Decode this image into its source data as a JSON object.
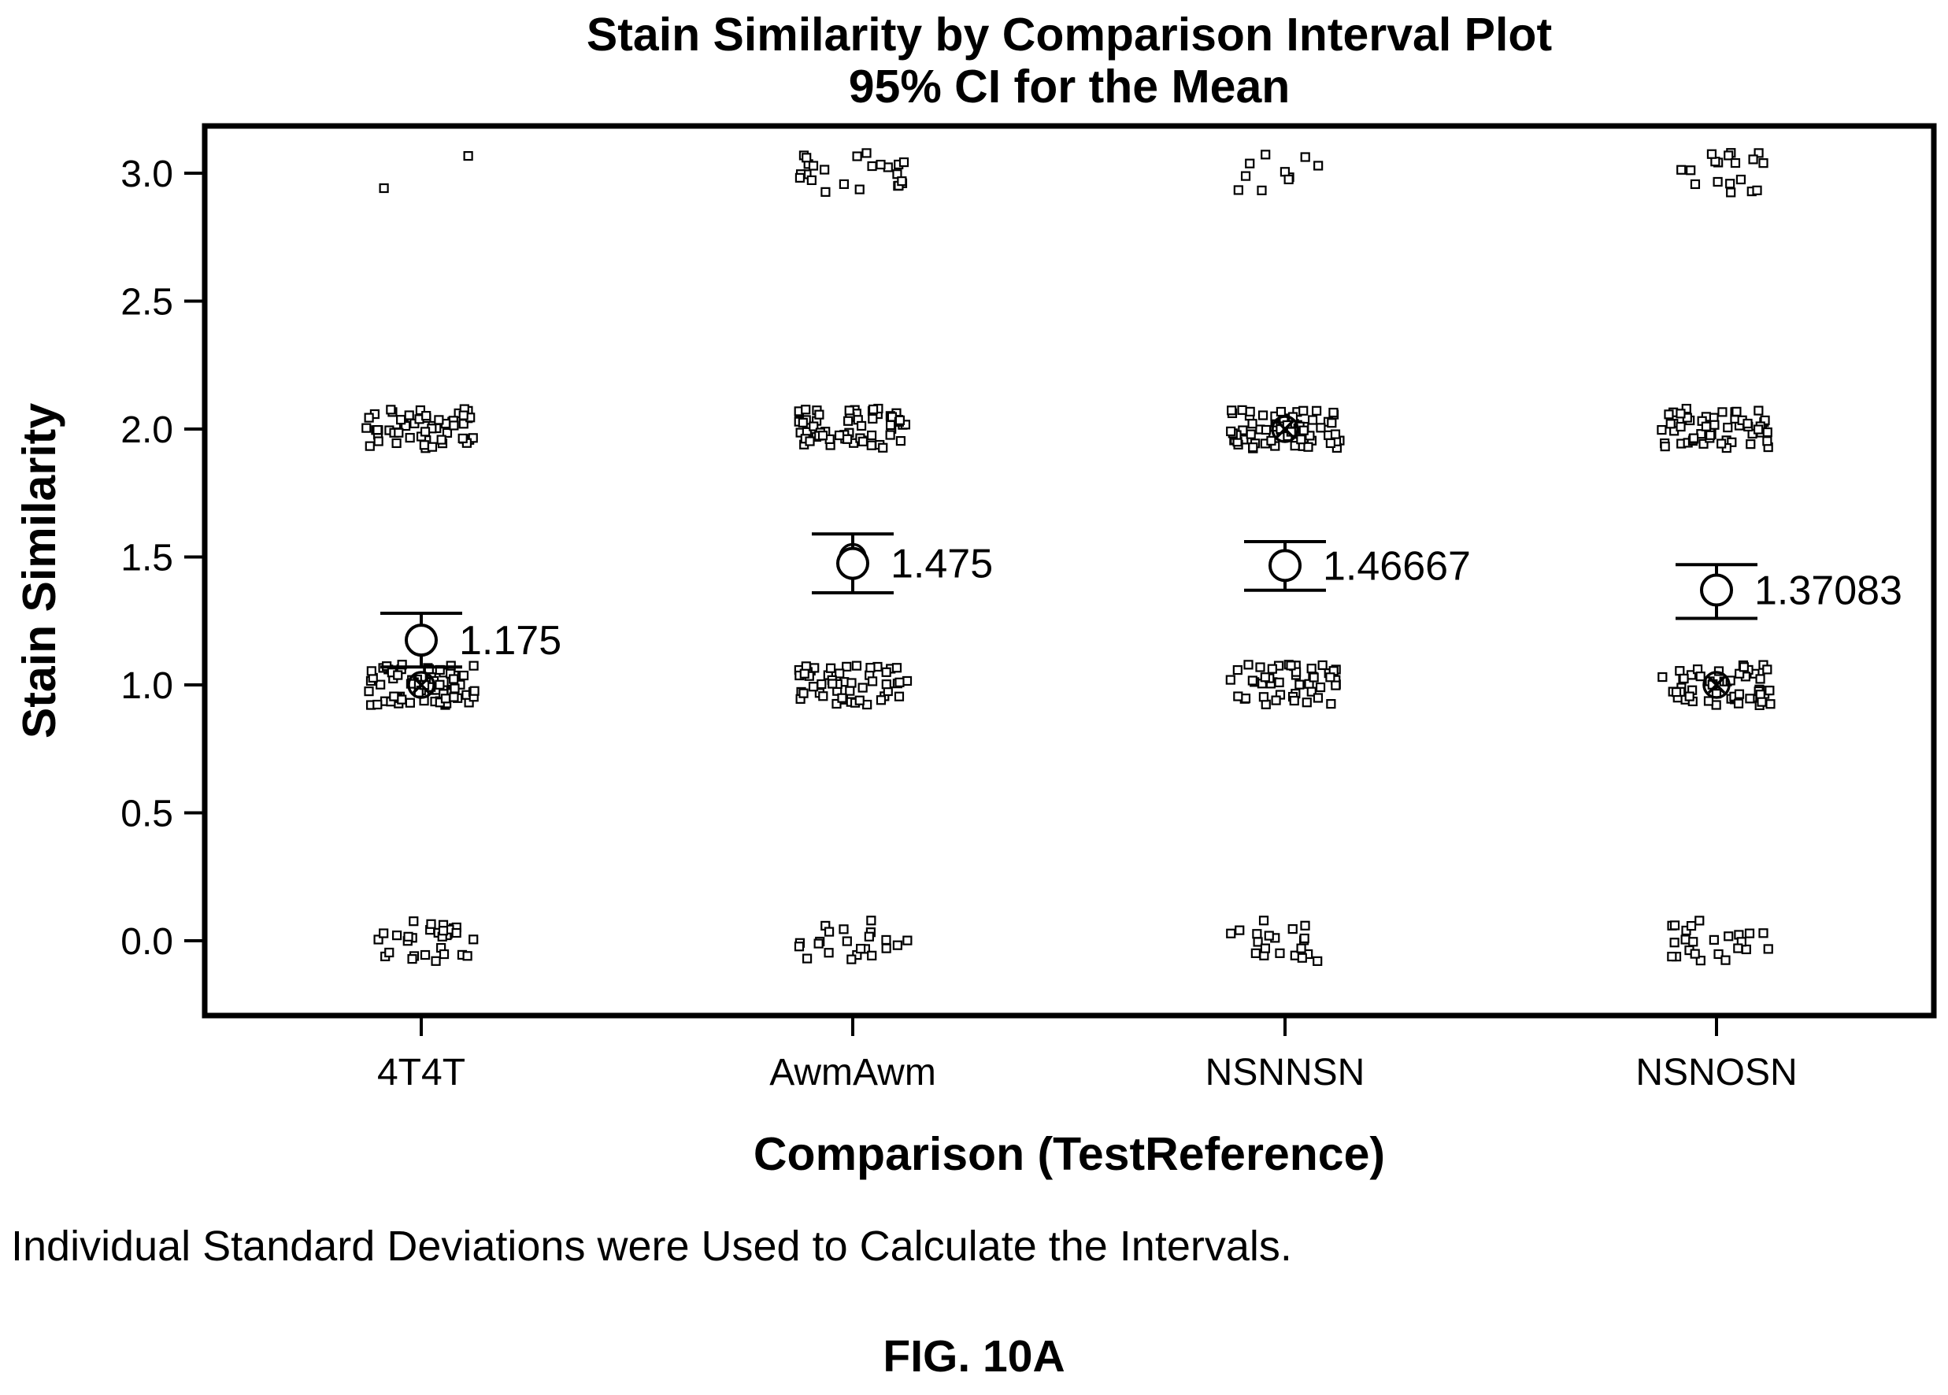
{
  "chart_data": {
    "type": "scatter",
    "title": "Stain Similarity by Comparison Interval Plot",
    "subtitle": "95% CI for the Mean",
    "xlabel": "Comparison (TestReference)",
    "ylabel": "Stain Similarity",
    "ylim": [
      -0.3,
      3.15
    ],
    "yticks": [
      0.0,
      0.5,
      1.0,
      1.5,
      2.0,
      2.5,
      3.0
    ],
    "ytick_labels": [
      "0.0",
      "0.5",
      "1.0",
      "1.5",
      "2.0",
      "2.5",
      "3.0"
    ],
    "categories": [
      "4T4T",
      "AwmAwm",
      "NSNNSN",
      "NSNOSN"
    ],
    "means": [
      1.175,
      1.475,
      1.46667,
      1.37083
    ],
    "mean_labels": [
      "1.175",
      "1.475",
      "1.46667",
      "1.37083"
    ],
    "ci": [
      [
        1.07,
        1.28
      ],
      [
        1.36,
        1.59
      ],
      [
        1.37,
        1.56
      ],
      [
        1.26,
        1.47
      ]
    ],
    "medians": [
      1.0,
      1.5,
      2.0,
      1.0
    ],
    "individual_values": [
      {
        "value": 0,
        "counts": [
          30,
          22,
          20,
          24
        ]
      },
      {
        "value": 1,
        "counts": [
          70,
          50,
          48,
          52
        ]
      },
      {
        "value": 2,
        "counts": [
          55,
          60,
          72,
          56
        ]
      },
      {
        "value": 3,
        "counts": [
          2,
          24,
          10,
          18
        ]
      }
    ],
    "grid": false,
    "legend": "none"
  },
  "footnote": "Individual Standard Deviations were Used to Calculate the Intervals.",
  "figure_label": "FIG. 10A"
}
